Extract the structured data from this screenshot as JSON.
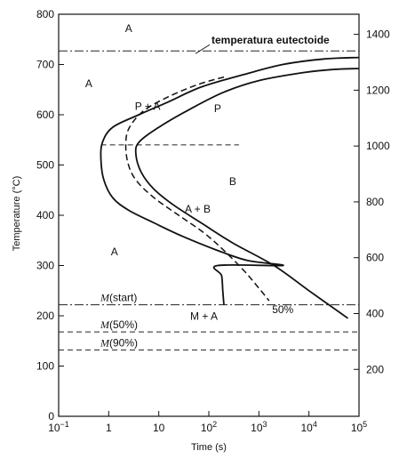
{
  "chart_data": {
    "type": "line",
    "title": "",
    "xlabel": "Time (s)",
    "ylabel": "Temperature (°C)",
    "y2label": "",
    "xscale": "log",
    "xlim": [
      0.1,
      100000
    ],
    "ylim": [
      0,
      800
    ],
    "y2lim_F": [
      32,
      1472
    ],
    "grid": false,
    "x_ticks": [
      {
        "value": 0.1,
        "base": "10",
        "exp": "−1"
      },
      {
        "value": 1,
        "base": "1",
        "exp": ""
      },
      {
        "value": 10,
        "base": "10",
        "exp": ""
      },
      {
        "value": 100,
        "base": "10",
        "exp": "2"
      },
      {
        "value": 1000,
        "base": "10",
        "exp": "3"
      },
      {
        "value": 10000,
        "base": "10",
        "exp": "4"
      },
      {
        "value": 100000,
        "base": "10",
        "exp": "5"
      }
    ],
    "y_ticks": [
      "0",
      "100",
      "200",
      "300",
      "400",
      "500",
      "600",
      "700",
      "800"
    ],
    "y2_ticks": [
      "200",
      "400",
      "600",
      "800",
      "1000",
      "1200",
      "1400"
    ],
    "curves": [
      {
        "id": "start",
        "style": "solid",
        "x": [
          100000,
          20000,
          3000,
          500,
          70,
          15,
          4,
          1.2,
          0.75,
          0.7,
          0.8,
          1.2,
          2.5,
          8,
          30,
          150,
          600,
          3000,
          150,
          180,
          190,
          200
        ],
        "y": [
          714,
          711,
          700,
          680,
          655,
          625,
          600,
          575,
          545,
          510,
          470,
          435,
          410,
          385,
          358,
          330,
          310,
          300,
          300,
          280,
          250,
          222
        ]
      },
      {
        "id": "finish",
        "style": "solid",
        "x": [
          100000,
          30000,
          8000,
          1000,
          200,
          40,
          10,
          4,
          3.5,
          4.5,
          8,
          20,
          70,
          300,
          2000,
          10000,
          60000
        ],
        "y": [
          692,
          690,
          684,
          668,
          645,
          610,
          575,
          545,
          520,
          485,
          452,
          420,
          385,
          345,
          300,
          250,
          195
        ]
      },
      {
        "id": "50pct",
        "style": "dashed",
        "x": [
          200,
          60,
          15,
          5,
          2.6,
          2.2,
          2.4,
          3.5,
          8,
          25,
          80,
          200,
          500,
          1000,
          1600
        ],
        "y": [
          675,
          660,
          635,
          608,
          575,
          545,
          505,
          470,
          435,
          400,
          365,
          330,
          290,
          255,
          230
        ]
      }
    ],
    "horizontal_lines": [
      {
        "id": "eutectoid",
        "y": 727,
        "style": "dashdot",
        "label": "temperatura eutectoide"
      },
      {
        "id": "nose",
        "y": 540,
        "style": "dashed",
        "x_from": 0.7,
        "x_to": 400
      },
      {
        "id": "ms",
        "y": 222,
        "style": "dashdot",
        "label_ital": "M",
        "label_rest": "(start)"
      },
      {
        "id": "m50",
        "y": 168,
        "style": "dashed",
        "label_ital": "M",
        "label_rest": "(50%)"
      },
      {
        "id": "m90",
        "y": 132,
        "style": "dashed",
        "label_ital": "M",
        "label_rest": "(90%)"
      }
    ],
    "annotations": [
      {
        "id": "A-top",
        "text": "A",
        "x": 2.5,
        "y": 765
      },
      {
        "id": "A-left",
        "text": "A",
        "x": 0.4,
        "y": 655
      },
      {
        "id": "P-plus-A",
        "text": "P + A",
        "x": 6,
        "y": 610
      },
      {
        "id": "P",
        "text": "P",
        "x": 150,
        "y": 605
      },
      {
        "id": "B",
        "text": "B",
        "x": 300,
        "y": 460
      },
      {
        "id": "A-plus-B",
        "text": "A + B",
        "x": 60,
        "y": 405
      },
      {
        "id": "A-lower",
        "text": "A",
        "x": 1.3,
        "y": 320
      },
      {
        "id": "M-plus-A",
        "text": "M + A",
        "x": 80,
        "y": 192
      },
      {
        "id": "fifty",
        "text": "50%",
        "x": 3000,
        "y": 205
      }
    ]
  }
}
